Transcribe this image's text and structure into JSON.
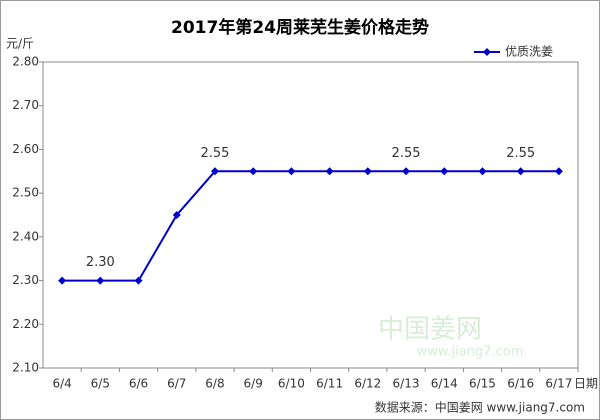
{
  "chart_data": {
    "type": "line",
    "title": "2017年第24周莱芜生姜价格走势",
    "y_label": "元/斤",
    "x_label": "日期",
    "categories": [
      "6/4",
      "6/5",
      "6/6",
      "6/7",
      "6/8",
      "6/9",
      "6/10",
      "6/11",
      "6/12",
      "6/13",
      "6/14",
      "6/15",
      "6/16",
      "6/17"
    ],
    "series": [
      {
        "name": "优质洗姜",
        "color": "#0000cc",
        "values": [
          2.3,
          2.3,
          2.3,
          2.45,
          2.55,
          2.55,
          2.55,
          2.55,
          2.55,
          2.55,
          2.55,
          2.55,
          2.55,
          2.55
        ],
        "value_labels": [
          null,
          "2.30",
          null,
          null,
          "2.55",
          null,
          null,
          null,
          null,
          "2.55",
          null,
          null,
          "2.55",
          null
        ]
      }
    ],
    "ylim": [
      2.1,
      2.8
    ],
    "yticks": [
      {
        "value": 2.1,
        "label": "2.10"
      },
      {
        "value": 2.2,
        "label": "2.20"
      },
      {
        "value": 2.3,
        "label": "2.30"
      },
      {
        "value": 2.4,
        "label": "2.40"
      },
      {
        "value": 2.5,
        "label": "2.50"
      },
      {
        "value": 2.6,
        "label": "2.60"
      },
      {
        "value": 2.7,
        "label": "2.70"
      },
      {
        "value": 2.8,
        "label": "2.80"
      }
    ],
    "legend": "top-right",
    "grid": false,
    "watermark": [
      "中国姜网",
      "www.jiang7.com"
    ],
    "source": "数据来源：中国姜网 www.jiang7.com"
  }
}
